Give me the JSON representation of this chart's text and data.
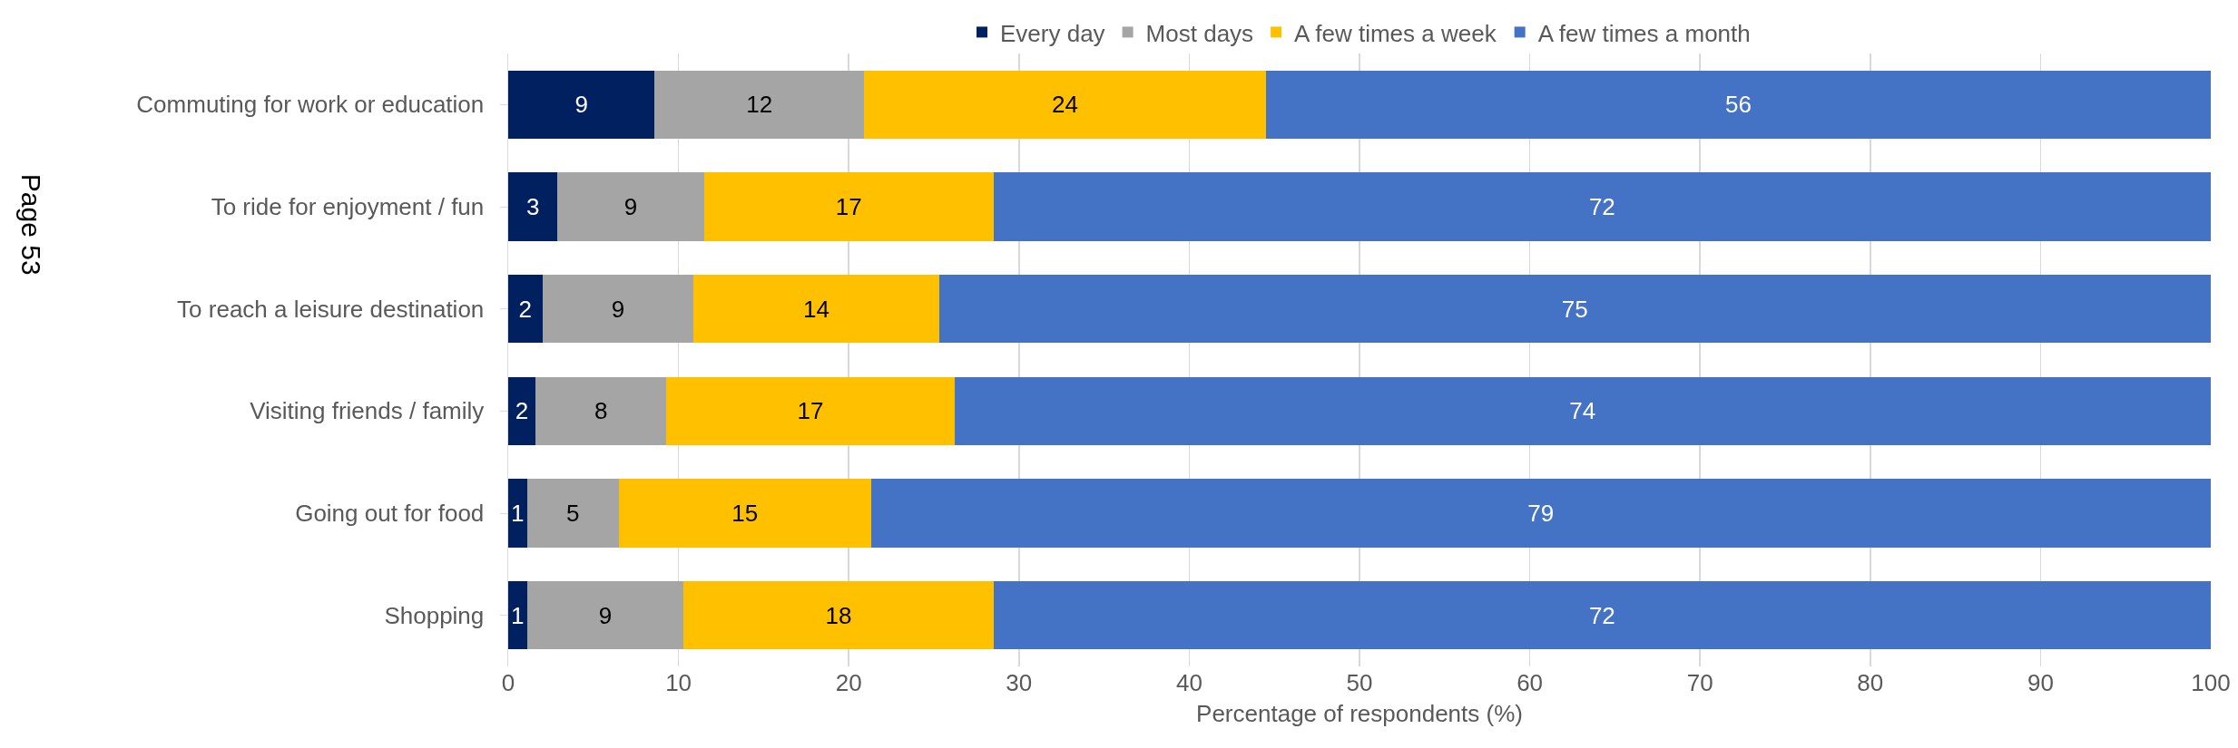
{
  "chart_data": {
    "type": "bar",
    "orientation": "horizontal",
    "stacked": true,
    "xlabel": "Percentage of respondents (%)",
    "categories": [
      "Commuting for work or education",
      "To ride for enjoyment / fun",
      "To reach a leisure destination",
      "Visiting friends / family",
      "Going out for food",
      "Shopping"
    ],
    "series": [
      {
        "name": "Every day",
        "color": "#002060",
        "values": [
          8.6,
          2.9,
          2.0,
          1.6,
          1.1,
          1.1
        ],
        "value_labels": [
          "9",
          "3",
          "2",
          "2",
          "1",
          "1"
        ]
      },
      {
        "name": "Most days",
        "color": "#a5a5a5",
        "values": [
          12.3,
          8.6,
          8.9,
          7.7,
          5.4,
          9.2
        ],
        "value_labels": [
          "12",
          "9",
          "9",
          "8",
          "5",
          "9"
        ]
      },
      {
        "name": "A few times a week",
        "color": "#ffc000",
        "values": [
          23.6,
          17.0,
          14.4,
          16.9,
          14.8,
          18.2
        ],
        "value_labels": [
          "24",
          "17",
          "14",
          "17",
          "15",
          "18"
        ]
      },
      {
        "name": "A few times a month",
        "color": "#4472c4",
        "values": [
          55.5,
          71.5,
          74.7,
          73.8,
          78.7,
          71.5
        ],
        "value_labels": [
          "56",
          "72",
          "75",
          "74",
          "79",
          "72"
        ]
      }
    ],
    "xlim": [
      0,
      100
    ],
    "xticks": [
      0,
      10,
      20,
      30,
      40,
      50,
      60,
      70,
      80,
      90,
      100
    ],
    "grid": "x",
    "legend": "top",
    "annotations": [
      "Page 53"
    ]
  }
}
